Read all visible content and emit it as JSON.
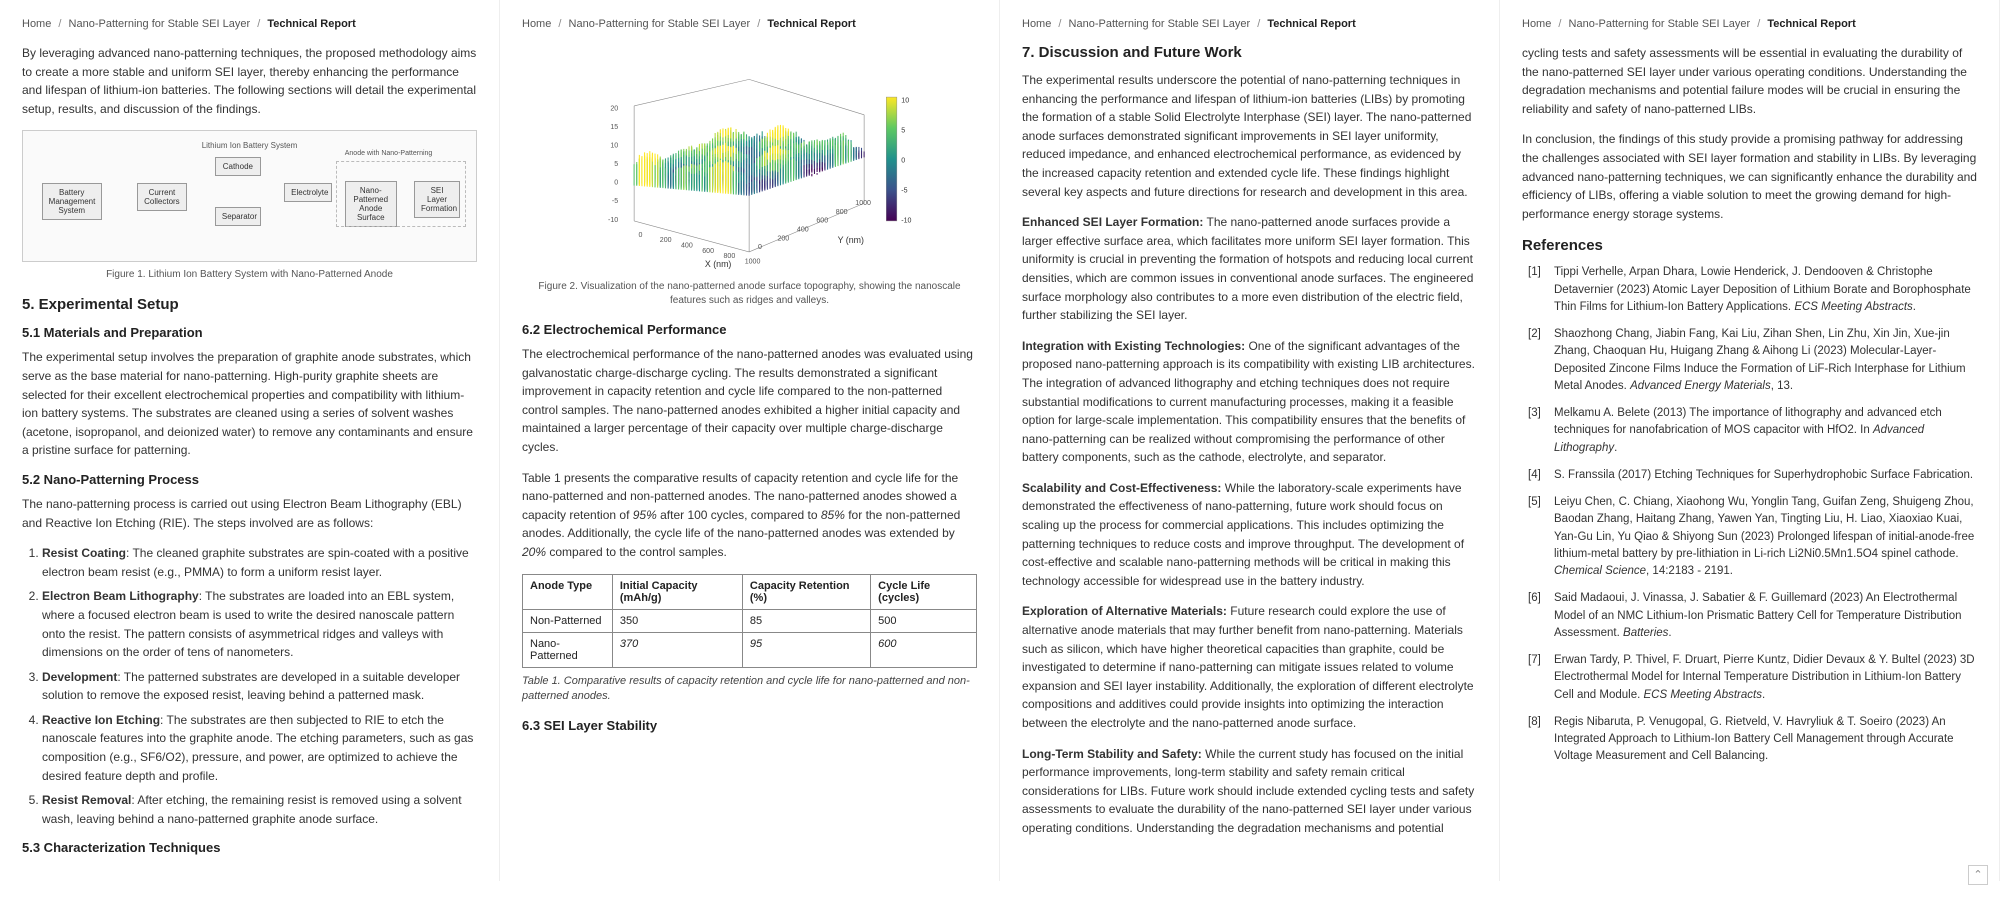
{
  "breadcrumb": {
    "items": [
      "Home",
      "Nano-Patterning for Stable SEI Layer"
    ],
    "current": "Technical Report",
    "sep": "/"
  },
  "page1": {
    "intro": "By leveraging advanced nano-patterning techniques, the proposed methodology aims to create a more stable and uniform SEI layer, thereby enhancing the performance and lifespan of lithium-ion batteries. The following sections will detail the experimental setup, results, and discussion of the findings.",
    "fig1": {
      "title": "Lithium Ion Battery System",
      "blocks": {
        "bms": "Battery Management System",
        "cc": "Current Collectors",
        "cathode": "Cathode",
        "sep": "Separator",
        "elec": "Electrolyte",
        "anode_group": "Anode with Nano-Patterning",
        "anode": "Nano-Patterned Anode Surface",
        "sei": "SEI Layer Formation"
      },
      "caption": "Figure 1. Lithium Ion Battery System with Nano-Patterned Anode"
    },
    "h5": "5. Experimental Setup",
    "h51": "5.1 Materials and Preparation",
    "p51": "The experimental setup involves the preparation of graphite anode substrates, which serve as the base material for nano-patterning. High-purity graphite sheets are selected for their excellent electrochemical properties and compatibility with lithium-ion battery systems. The substrates are cleaned using a series of solvent washes (acetone, isopropanol, and deionized water) to remove any contaminants and ensure a pristine surface for patterning.",
    "h52": "5.2 Nano-Patterning Process",
    "p52": "The nano-patterning process is carried out using Electron Beam Lithography (EBL) and Reactive Ion Etching (RIE). The steps involved are as follows:",
    "steps": [
      {
        "label": "Resist Coating",
        "text": ": The cleaned graphite substrates are spin-coated with a positive electron beam resist (e.g., PMMA) to form a uniform resist layer."
      },
      {
        "label": "Electron Beam Lithography",
        "text": ": The substrates are loaded into an EBL system, where a focused electron beam is used to write the desired nanoscale pattern onto the resist. The pattern consists of asymmetrical ridges and valleys with dimensions on the order of tens of nanometers."
      },
      {
        "label": "Development",
        "text": ": The patterned substrates are developed in a suitable developer solution to remove the exposed resist, leaving behind a patterned mask."
      },
      {
        "label": "Reactive Ion Etching",
        "text": ": The substrates are then subjected to RIE to etch the nanoscale features into the graphite anode. The etching parameters, such as gas composition (e.g., SF6/O2), pressure, and power, are optimized to achieve the desired feature depth and profile."
      },
      {
        "label": "Resist Removal",
        "text": ": After etching, the remaining resist is removed using a solvent wash, leaving behind a nano-patterned graphite anode surface."
      }
    ],
    "h53": "5.3 Characterization Techniques"
  },
  "page2": {
    "fig2": {
      "caption": "Figure 2. Visualization of the nano-patterned anode surface topography, showing the nanoscale features such as ridges and valleys.",
      "xlabel": "X (nm)",
      "ylabel": "Y (nm)",
      "xticks": [
        "0",
        "200",
        "400",
        "600",
        "800",
        "1000"
      ],
      "yticks": [
        "0",
        "200",
        "400",
        "600",
        "800",
        "1000"
      ],
      "zticks_left": [
        "20",
        "15",
        "10",
        "5",
        "0",
        "-5",
        "-10"
      ],
      "colorbar_ticks": [
        "10",
        "5",
        "0",
        "-5",
        "-10"
      ],
      "colorbar_colors": [
        "#fde725",
        "#5ec962",
        "#21918c",
        "#3b528b",
        "#440154"
      ]
    },
    "h62": "6.2 Electrochemical Performance",
    "p62a": "The electrochemical performance of the nano-patterned anodes was evaluated using galvanostatic charge-discharge cycling. The results demonstrated a significant improvement in capacity retention and cycle life compared to the non-patterned control samples. The nano-patterned anodes exhibited a higher initial capacity and maintained a larger percentage of their capacity over multiple charge-discharge cycles.",
    "p62b_pre": "Table 1 presents the comparative results of capacity retention and cycle life for the nano-patterned and non-patterned anodes. The nano-patterned anodes showed a capacity retention of ",
    "p62b_v1": "95%",
    "p62b_mid1": " after 100 cycles, compared to ",
    "p62b_v2": "85%",
    "p62b_mid2": " for the non-patterned anodes. Additionally, the cycle life of the nano-patterned anodes was extended by ",
    "p62b_v3": "20%",
    "p62b_end": " compared to the control samples.",
    "table": {
      "headers": [
        "Anode Type",
        "Initial Capacity (mAh/g)",
        "Capacity Retention (%)",
        "Cycle Life (cycles)"
      ],
      "rows": [
        [
          "Non-Patterned",
          "350",
          "85",
          "500"
        ],
        [
          "Nano-Patterned",
          "370",
          "95",
          "600"
        ]
      ],
      "caption": "Table 1. Comparative results of capacity retention and cycle life for nano-patterned and non-patterned anodes."
    },
    "h63": "6.3 SEI Layer Stability"
  },
  "page3": {
    "h7": "7. Discussion and Future Work",
    "p7a": "The experimental results underscore the potential of nano-patterning techniques in enhancing the performance and lifespan of lithium-ion batteries (LIBs) by promoting the formation of a stable Solid Electrolyte Interphase (SEI) layer. The nano-patterned anode surfaces demonstrated significant improvements in SEI layer uniformity, reduced impedance, and enhanced electrochemical performance, as evidenced by the increased capacity retention and extended cycle life. These findings highlight several key aspects and future directions for research and development in this area.",
    "paras": [
      {
        "lead": "Enhanced SEI Layer Formation:",
        "text": " The nano-patterned anode surfaces provide a larger effective surface area, which facilitates more uniform SEI layer formation. This uniformity is crucial in preventing the formation of hotspots and reducing local current densities, which are common issues in conventional anode surfaces. The engineered surface morphology also contributes to a more even distribution of the electric field, further stabilizing the SEI layer."
      },
      {
        "lead": "Integration with Existing Technologies:",
        "text": " One of the significant advantages of the proposed nano-patterning approach is its compatibility with existing LIB architectures. The integration of advanced lithography and etching techniques does not require substantial modifications to current manufacturing processes, making it a feasible option for large-scale implementation. This compatibility ensures that the benefits of nano-patterning can be realized without compromising the performance of other battery components, such as the cathode, electrolyte, and separator."
      },
      {
        "lead": "Scalability and Cost-Effectiveness:",
        "text": " While the laboratory-scale experiments have demonstrated the effectiveness of nano-patterning, future work should focus on scaling up the process for commercial applications. This includes optimizing the patterning techniques to reduce costs and improve throughput. The development of cost-effective and scalable nano-patterning methods will be critical in making this technology accessible for widespread use in the battery industry."
      },
      {
        "lead": "Exploration of Alternative Materials:",
        "text": " Future research could explore the use of alternative anode materials that may further benefit from nano-patterning. Materials such as silicon, which have higher theoretical capacities than graphite, could be investigated to determine if nano-patterning can mitigate issues related to volume expansion and SEI layer instability. Additionally, the exploration of different electrolyte compositions and additives could provide insights into optimizing the interaction between the electrolyte and the nano-patterned anode surface."
      },
      {
        "lead": "Long-Term Stability and Safety:",
        "text": " While the current study has focused on the initial performance improvements, long-term stability and safety remain critical considerations for LIBs. Future work should include extended cycling tests and safety assessments to evaluate the durability of the nano-patterned SEI layer under various operating conditions. Understanding the degradation mechanisms and potential"
      }
    ]
  },
  "page4": {
    "p_cont": "cycling tests and safety assessments will be essential in evaluating the durability of the nano-patterned SEI layer under various operating conditions. Understanding the degradation mechanisms and potential failure modes will be crucial in ensuring the reliability and safety of nano-patterned LIBs.",
    "p_concl": "In conclusion, the findings of this study provide a promising pathway for addressing the challenges associated with SEI layer formation and stability in LIBs. By leveraging advanced nano-patterning techniques, we can significantly enhance the durability and efficiency of LIBs, offering a viable solution to meet the growing demand for high-performance energy storage systems.",
    "h_refs": "References",
    "refs": [
      {
        "text": "Tippi Verhelle, Arpan Dhara, Lowie Henderick, J. Dendooven & Christophe Detavernier (2023) Atomic Layer Deposition of Lithium Borate and Borophosphate Thin Films for Lithium-Ion Battery Applications. ",
        "ital": "ECS Meeting Abstracts",
        "tail": "."
      },
      {
        "text": "Shaozhong Chang, Jiabin Fang, Kai Liu, Zihan Shen, Lin Zhu, Xin Jin, Xue-jin Zhang, Chaoquan Hu, Huigang Zhang & Aihong Li (2023) Molecular‐Layer‐Deposited Zincone Films Induce the Formation of LiF‐Rich Interphase for Lithium Metal Anodes. ",
        "ital": "Advanced Energy Materials",
        "tail": ", 13."
      },
      {
        "text": "Melkamu A. Belete (2013) The importance of lithography and advanced etch techniques for nanofabrication of MOS capacitor with HfO2. In ",
        "ital": "Advanced Lithography",
        "tail": "."
      },
      {
        "text": "S. Franssila (2017) Etching Techniques for Superhydrophobic Surface Fabrication.",
        "ital": "",
        "tail": ""
      },
      {
        "text": "Leiyu Chen, C. Chiang, Xiaohong Wu, Yonglin Tang, Guifan Zeng, Shuigeng Zhou, Baodan Zhang, Haitang Zhang, Yawen Yan, Tingting Liu, H. Liao, Xiaoxiao Kuai, Yan-Gu Lin, Yu Qiao & Shiyong Sun (2023) Prolonged lifespan of initial-anode-free lithium-metal battery by pre-lithiation in Li-rich Li2Ni0.5Mn1.5O4 spinel cathode. ",
        "ital": "Chemical Science",
        "tail": ", 14:2183 - 2191."
      },
      {
        "text": "Said Madaoui, J. Vinassa, J. Sabatier & F. Guillemard (2023) An Electrothermal Model of an NMC Lithium-Ion Prismatic Battery Cell for Temperature Distribution Assessment. ",
        "ital": "Batteries",
        "tail": "."
      },
      {
        "text": "Erwan Tardy, P. Thivel, F. Druart, Pierre Kuntz, Didier Devaux & Y. Bultel (2023) 3D Electrothermal Model for Internal Temperature Distribution in Lithium-Ion Battery Cell and Module. ",
        "ital": "ECS Meeting Abstracts",
        "tail": "."
      },
      {
        "text": "Regis Nibaruta, P. Venugopal, G. Rietveld, V. Havryliuk & T. Soeiro (2023) An Integrated Approach to Lithium-Ion Battery Cell Management through Accurate Voltage Measurement and Cell Balancing.",
        "ital": "",
        "tail": ""
      }
    ]
  }
}
